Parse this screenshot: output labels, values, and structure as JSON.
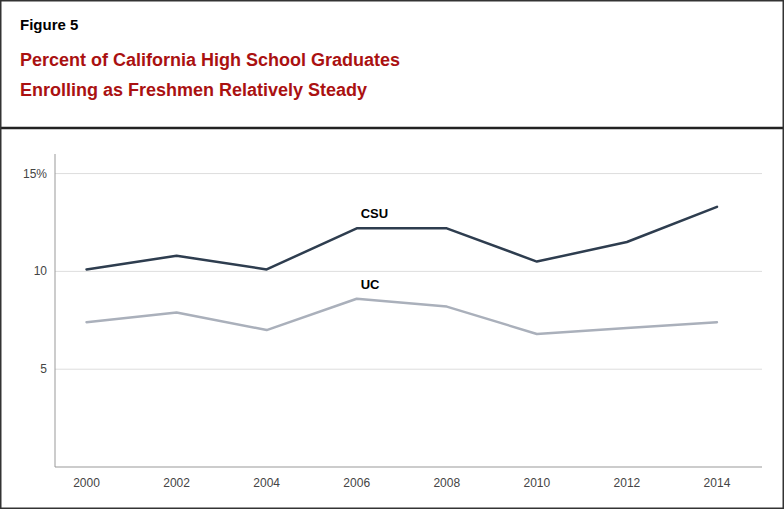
{
  "chart_data": {
    "type": "line",
    "annotations": [
      "Figure 5"
    ],
    "title": "Percent of California High School Graduates",
    "subtitle": "Enrolling as Freshmen Relatively Steady",
    "x": [
      2000,
      2002,
      2004,
      2006,
      2008,
      2010,
      2012,
      2014
    ],
    "series": [
      {
        "name": "CSU",
        "color": "#2e3d4f",
        "values": [
          10.1,
          10.8,
          10.1,
          12.2,
          12.2,
          10.5,
          11.5,
          13.3
        ]
      },
      {
        "name": "UC",
        "color": "#aab0bb",
        "values": [
          7.4,
          7.9,
          7.0,
          8.6,
          8.2,
          6.8,
          7.1,
          7.4
        ]
      }
    ],
    "xlim": [
      1999.3,
      2015.0
    ],
    "xticks": [
      2000,
      2002,
      2004,
      2006,
      2008,
      2010,
      2012,
      2014
    ],
    "ylim": [
      0,
      16
    ],
    "yticks": [
      5,
      10,
      {
        "value": 15,
        "label": "15%"
      }
    ],
    "grid": true
  }
}
